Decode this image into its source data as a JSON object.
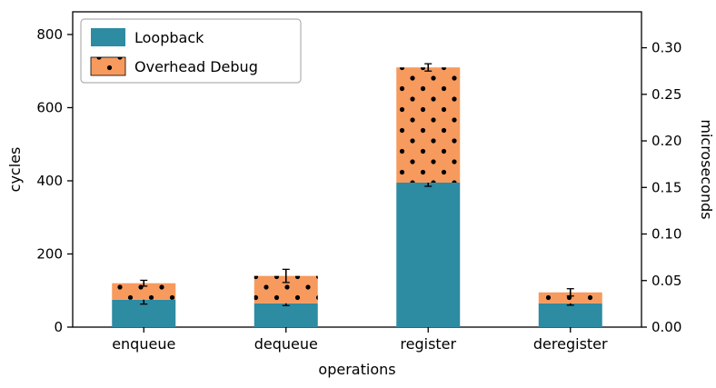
{
  "chart_data": {
    "type": "bar",
    "stacked": true,
    "title": "",
    "xlabel": "operations",
    "ylabel_left": "cycles",
    "ylabel_right": "microseconds",
    "categories": [
      "enqueue",
      "dequeue",
      "register",
      "deregister"
    ],
    "series": [
      {
        "name": "Loopback",
        "color": "#2d8ba2",
        "pattern": "solid",
        "values": [
          75,
          65,
          395,
          65
        ],
        "errors": [
          12,
          6,
          10,
          5
        ]
      },
      {
        "name": "Overhead Debug",
        "color": "#f79a5e",
        "pattern": "dots",
        "values": [
          45,
          75,
          315,
          30
        ],
        "errors": [
          8,
          18,
          10,
          10
        ]
      }
    ],
    "yticks_left": [
      0,
      200,
      400,
      600,
      800
    ],
    "yticks_right": [
      0.0,
      0.05,
      0.1,
      0.15,
      0.2,
      0.25,
      0.3
    ],
    "ylim_left": [
      0,
      862
    ],
    "ylim_right": [
      0,
      0.3386
    ],
    "legend_position": "upper left",
    "grid": false,
    "dot_color": "#000000",
    "axis_color": "#000000",
    "legend_border_color": "#b0b0b0"
  }
}
